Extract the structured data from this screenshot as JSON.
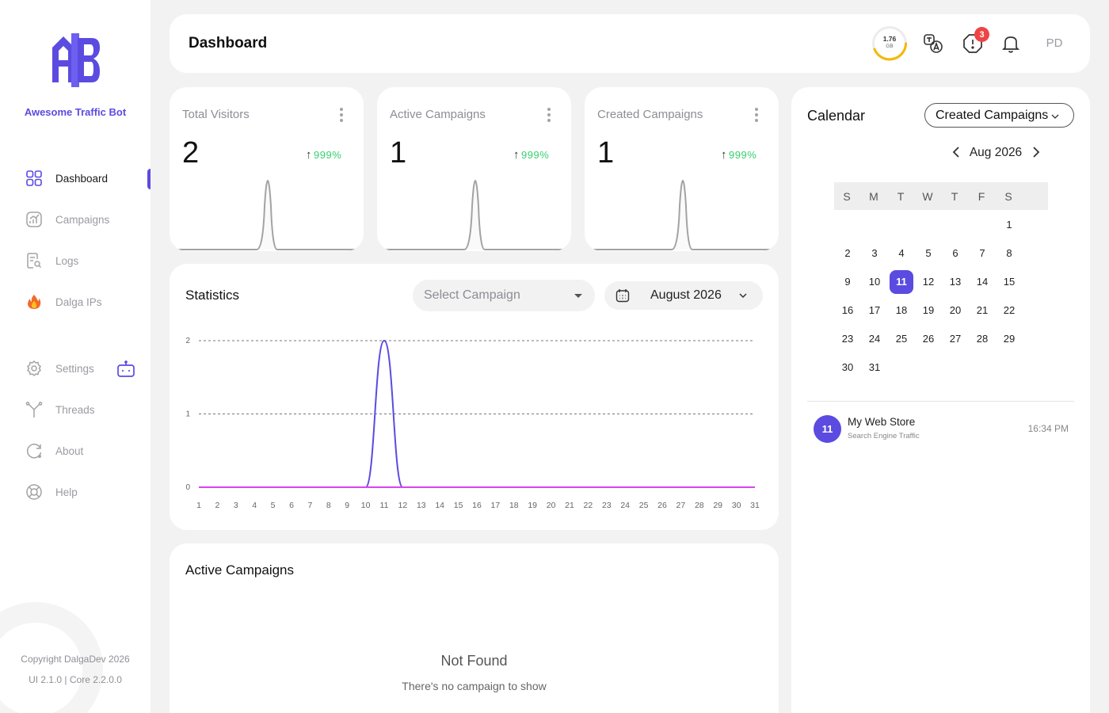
{
  "sidebar": {
    "brand": "Awesome Traffic Bot",
    "items": [
      {
        "label": "Dashboard",
        "icon": "grid-icon",
        "active": true
      },
      {
        "label": "Campaigns",
        "icon": "chart-icon"
      },
      {
        "label": "Logs",
        "icon": "document-search-icon"
      },
      {
        "label": "Dalga IPs",
        "icon": "flame-icon"
      },
      {
        "label": "Settings",
        "icon": "gear-icon"
      },
      {
        "label": "Threads",
        "icon": "branch-icon"
      },
      {
        "label": "About",
        "icon": "info-refresh-icon"
      },
      {
        "label": "Help",
        "icon": "lifebuoy-icon"
      }
    ],
    "copyright": "Copyright DalgaDev 2026",
    "version": "UI 2.1.0 | Core 2.2.0.0"
  },
  "header": {
    "title": "Dashboard",
    "storage_value": "1.76",
    "storage_unit": "GB",
    "alert_count": "3",
    "avatar": "PD"
  },
  "stats": [
    {
      "title": "Total Visitors",
      "value": "2",
      "trend": "999%"
    },
    {
      "title": "Active Campaigns",
      "value": "1",
      "trend": "999%"
    },
    {
      "title": "Created Campaigns",
      "value": "1",
      "trend": "999%"
    }
  ],
  "statistics": {
    "title": "Statistics",
    "select_placeholder": "Select Campaign",
    "month": "August 2026"
  },
  "chart_data": {
    "type": "line",
    "x": [
      1,
      2,
      3,
      4,
      5,
      6,
      7,
      8,
      9,
      10,
      11,
      12,
      13,
      14,
      15,
      16,
      17,
      18,
      19,
      20,
      21,
      22,
      23,
      24,
      25,
      26,
      27,
      28,
      29,
      30,
      31
    ],
    "series": [
      {
        "values": [
          0,
          0,
          0,
          0,
          0,
          0,
          0,
          0,
          0,
          0,
          2,
          0,
          0,
          0,
          0,
          0,
          0,
          0,
          0,
          0,
          0,
          0,
          0,
          0,
          0,
          0,
          0,
          0,
          0,
          0,
          0
        ],
        "color": "#5b4be0"
      },
      {
        "values": [
          0,
          0,
          0,
          0,
          0,
          0,
          0,
          0,
          0,
          0,
          0,
          0,
          0,
          0,
          0,
          0,
          0,
          0,
          0,
          0,
          0,
          0,
          0,
          0,
          0,
          0,
          0,
          0,
          0,
          0,
          0
        ],
        "color": "#d946ef"
      }
    ],
    "yticks": [
      0,
      1,
      2
    ],
    "ylim": [
      0,
      2
    ],
    "grid": true,
    "title": "",
    "xlabel": "",
    "ylabel": ""
  },
  "active_campaigns": {
    "title": "Active Campaigns",
    "empty_title": "Not Found",
    "empty_text": "There's no campaign to show"
  },
  "calendar": {
    "title": "Calendar",
    "filter": "Created Campaigns",
    "month": "Aug 2026",
    "weekdays": [
      "S",
      "M",
      "T",
      "W",
      "T",
      "F",
      "S"
    ],
    "first_weekday": 6,
    "days_in_month": 31,
    "selected_day": 11,
    "events": [
      {
        "day": "11",
        "name": "My Web Store",
        "type": "Search Engine Traffic",
        "time": "16:34 PM"
      }
    ]
  },
  "colors": {
    "accent": "#5b4be0",
    "trend_up": "#36d06e",
    "alert": "#ef4444",
    "storage_ring": "#f5b800"
  }
}
